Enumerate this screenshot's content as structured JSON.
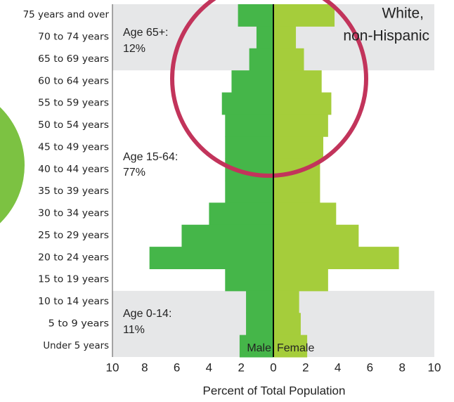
{
  "chart_data": {
    "type": "pyramid",
    "categories": [
      "75 years and over",
      "70 to 74 years",
      "65 to 69 years",
      "60 to 64 years",
      "55 to 59 years",
      "50 to 54 years",
      "45 to 49 years",
      "40 to 44 years",
      "35 to 39 years",
      "30 to 34 years",
      "25 to 29 years",
      "20 to 24 years",
      "15 to 19 years",
      "10 to 14 years",
      "5 to 9 years",
      "Under 5 years"
    ],
    "series": [
      {
        "name": "Male",
        "color": "#45b649",
        "values": [
          -2.2,
          -1.05,
          -1.5,
          -2.6,
          -3.2,
          -3.0,
          -3.0,
          -3.0,
          -3.0,
          -4.0,
          -5.7,
          -7.7,
          -3.0,
          -1.7,
          -1.7,
          -2.1
        ]
      },
      {
        "name": "Female",
        "color": "#a5cd3b",
        "values": [
          3.8,
          1.4,
          1.9,
          3.0,
          3.6,
          3.4,
          3.1,
          2.9,
          2.9,
          3.9,
          5.3,
          7.8,
          3.4,
          1.6,
          1.7,
          2.1
        ]
      }
    ],
    "xlim": [
      -10,
      10
    ],
    "xticks": [
      {
        "value": -10,
        "label": "10"
      },
      {
        "value": -8,
        "label": "8"
      },
      {
        "value": -6,
        "label": "6"
      },
      {
        "value": -4,
        "label": "4"
      },
      {
        "value": -2,
        "label": "2"
      },
      0,
      2,
      4,
      6,
      8,
      10
    ],
    "xlabel": "Percent of Total Population",
    "annotations": [
      "White,",
      "non-Hispanic",
      "Age 65+:",
      "12%",
      "Age 15-64:",
      "77%",
      "Age 0-14:",
      "11%"
    ]
  }
}
